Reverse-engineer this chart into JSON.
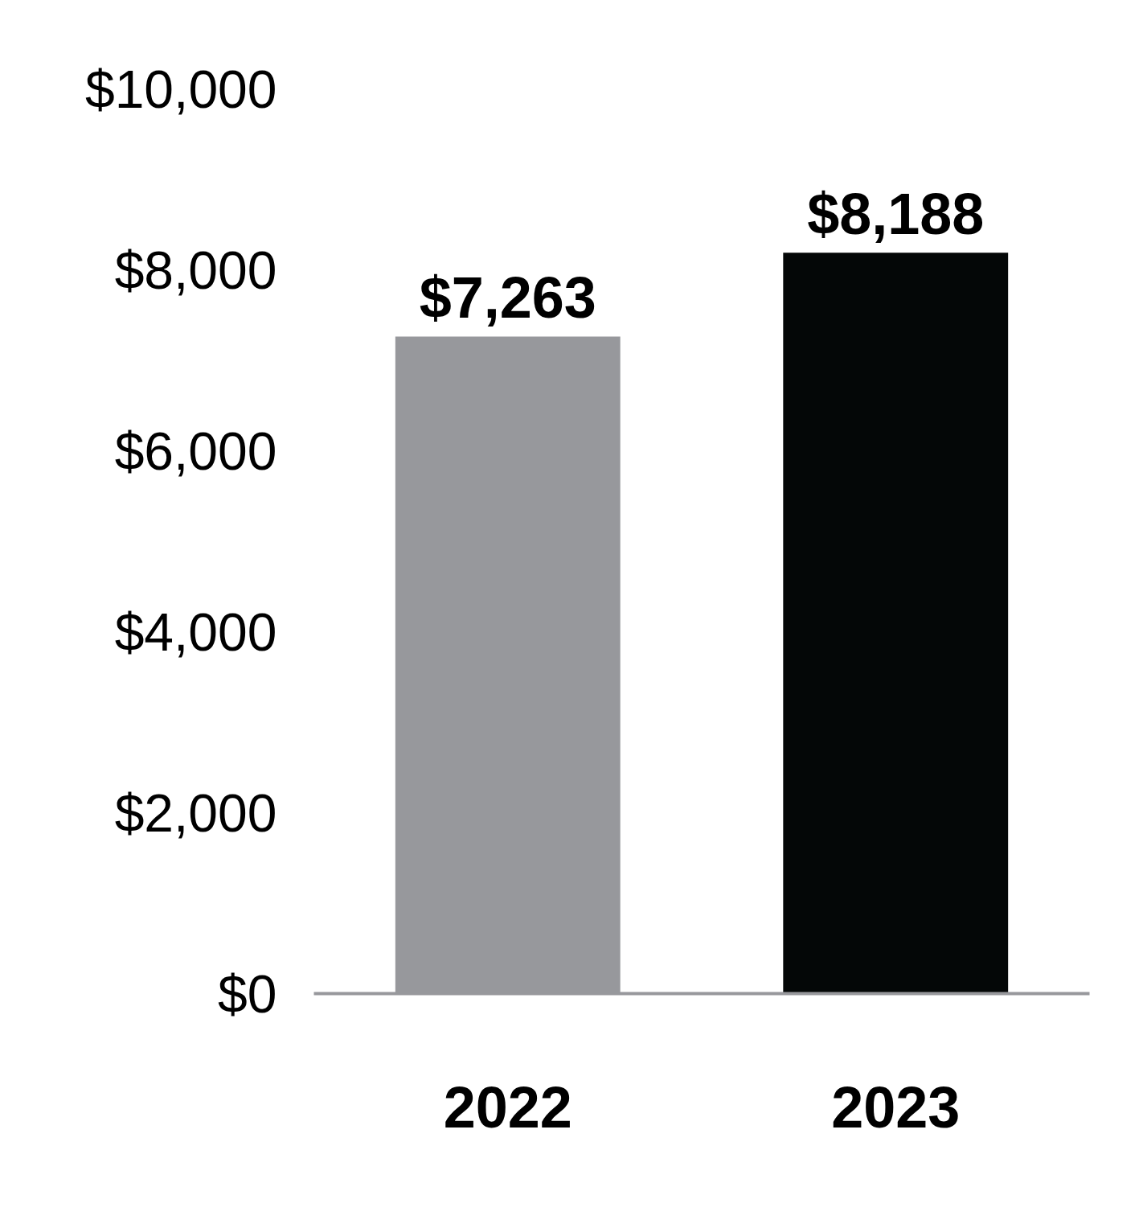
{
  "chart_data": {
    "type": "bar",
    "categories": [
      "2022",
      "2023"
    ],
    "values": [
      7263,
      8188
    ],
    "colors": [
      "#97989c",
      "#040707"
    ],
    "value_labels": [
      "$7,263",
      "$8,188"
    ],
    "ylim": [
      0,
      10000
    ],
    "yticks": [
      {
        "value": 0,
        "label": "$0"
      },
      {
        "value": 2000,
        "label": "$2,000"
      },
      {
        "value": 4000,
        "label": "$4,000"
      },
      {
        "value": 6000,
        "label": "$6,000"
      },
      {
        "value": 8000,
        "label": "$8,000"
      },
      {
        "value": 10000,
        "label": "$10,000"
      }
    ],
    "grid": false
  }
}
